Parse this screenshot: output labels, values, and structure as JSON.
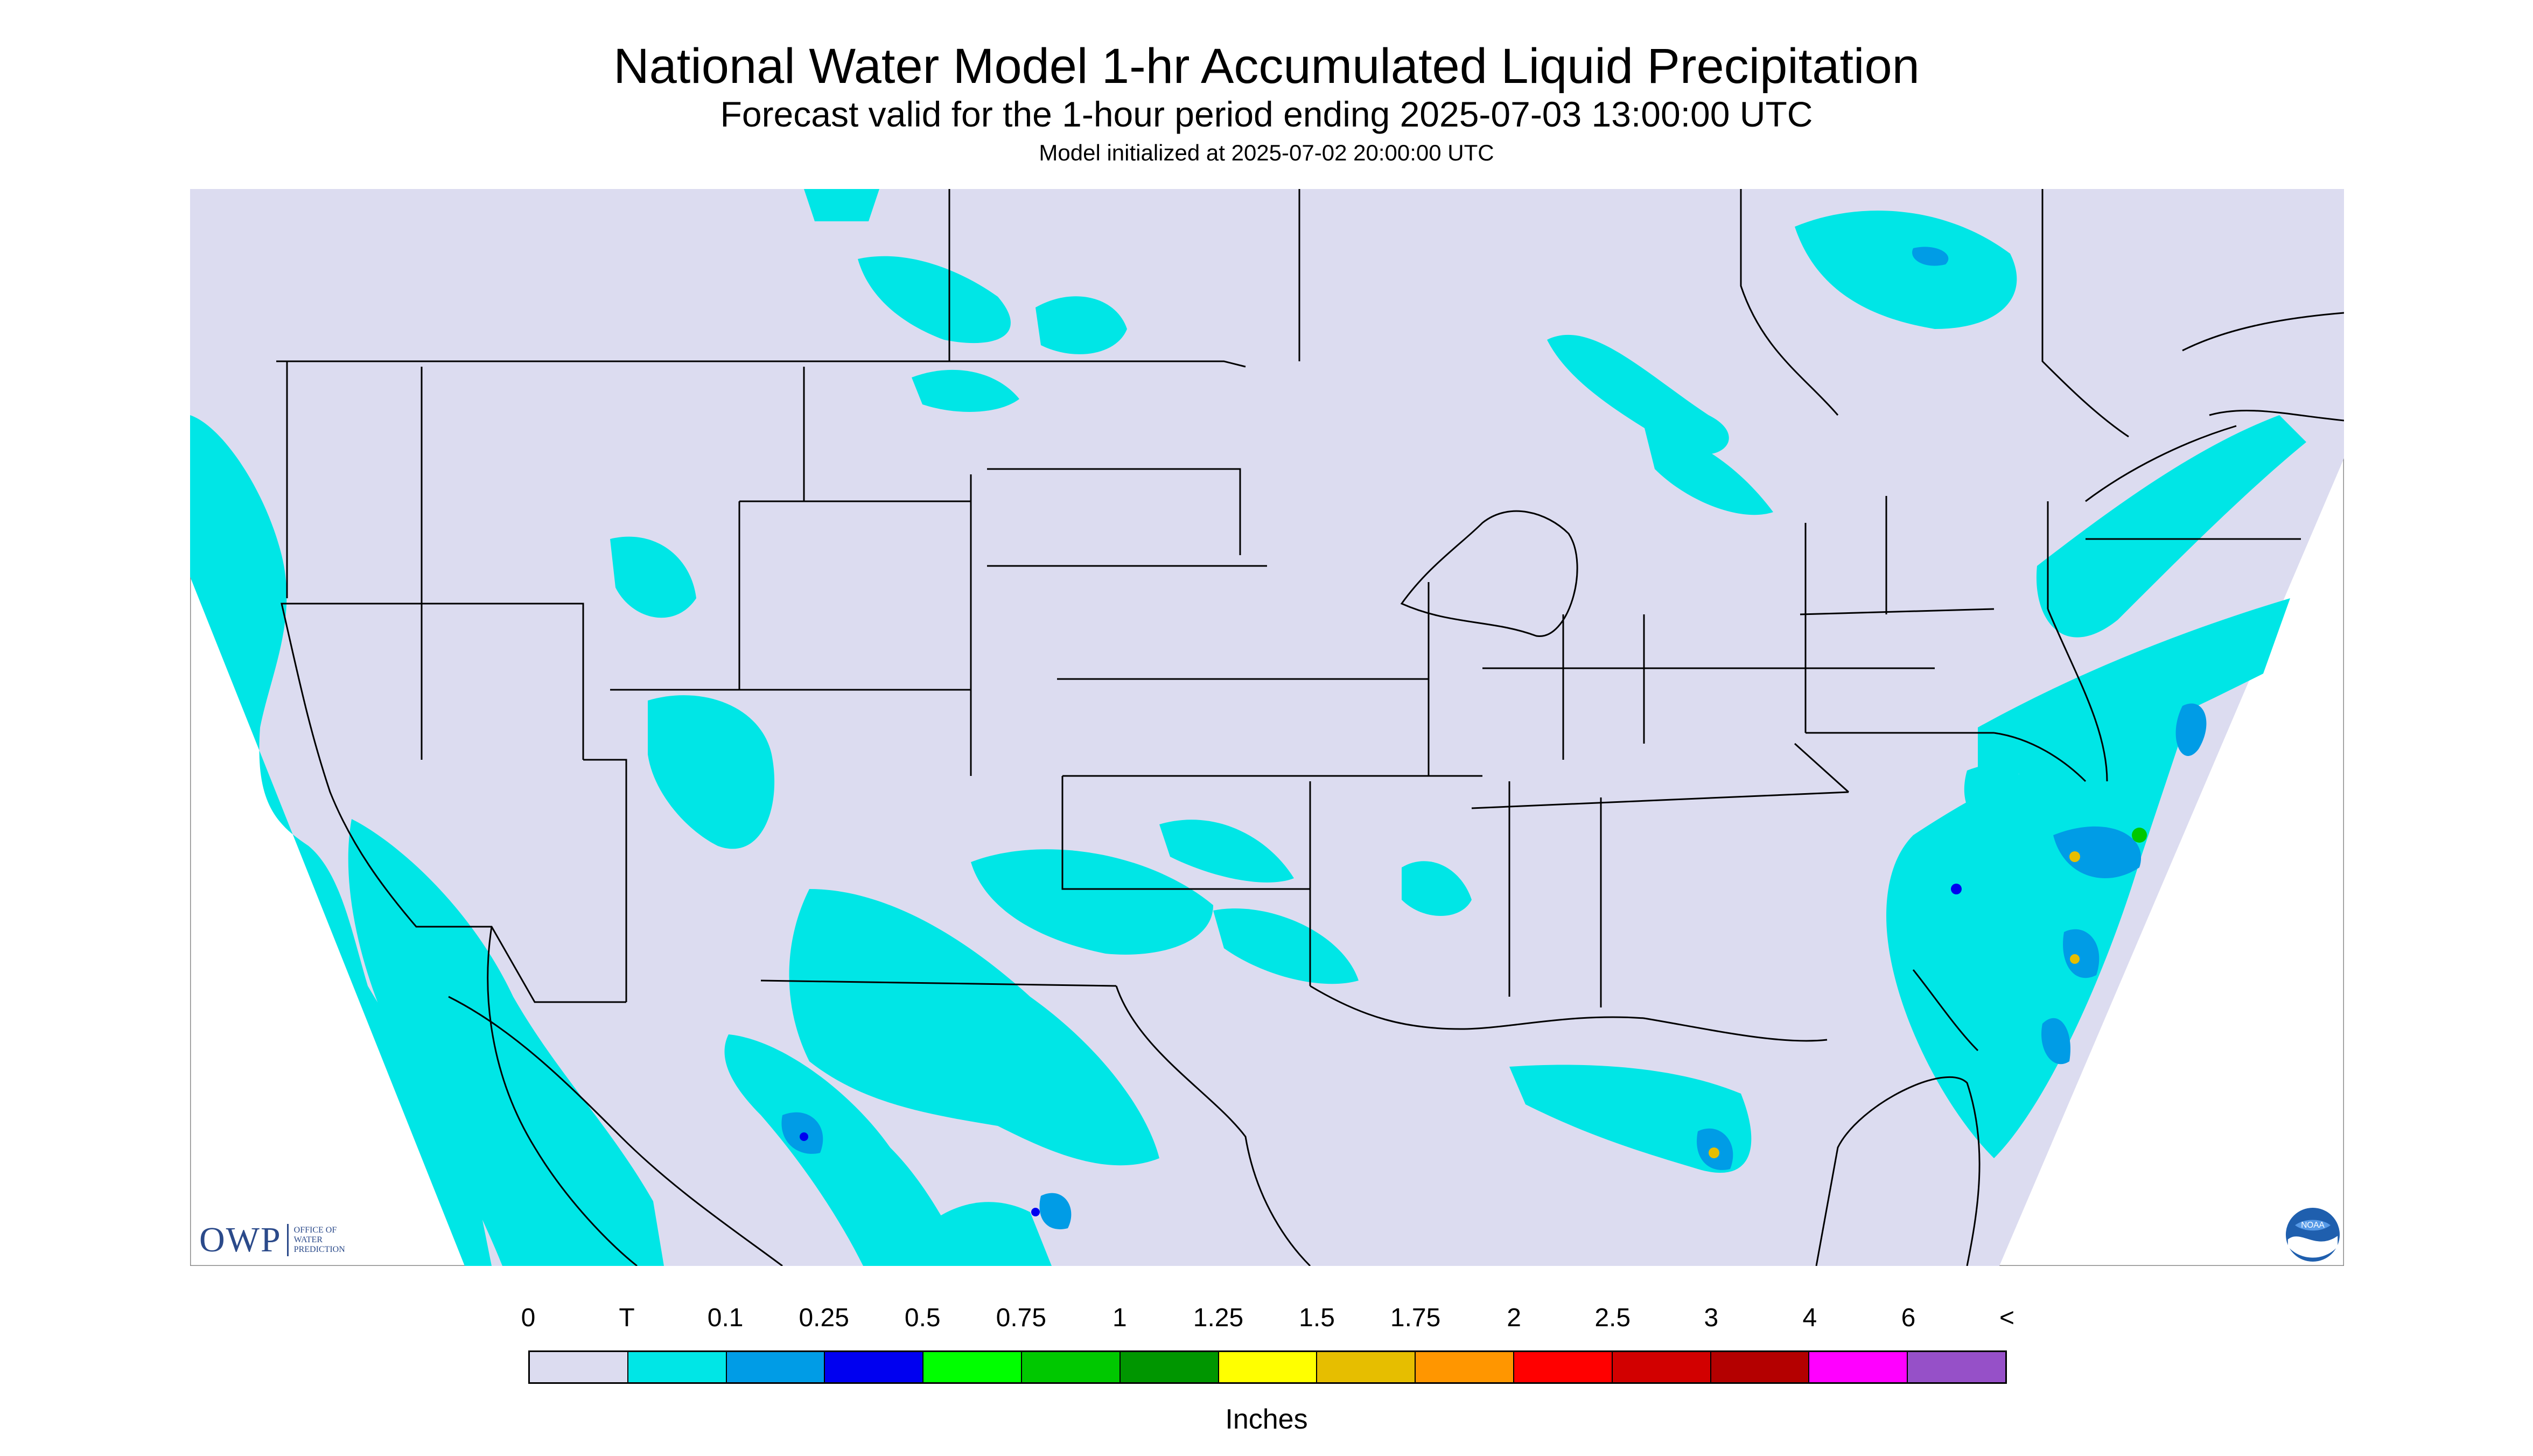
{
  "header": {
    "title": "National Water Model 1-hr Accumulated Liquid Precipitation",
    "subtitle": "Forecast valid for the 1-hour period ending 2025-07-03 13:00:00 UTC",
    "init": "Model initialized at 2025-07-02 20:00:00 UTC"
  },
  "colors": {
    "no_data": "#dcdcf0",
    "land_outline": "#000000",
    "trace": "#00e6e6",
    "light": "#009ce6",
    "heavy": "#0000f0"
  },
  "legend": {
    "labels": [
      "0",
      "T",
      "0.1",
      "0.25",
      "0.5",
      "0.75",
      "1",
      "1.25",
      "1.5",
      "1.75",
      "2",
      "2.5",
      "3",
      "4",
      "6",
      "<"
    ],
    "colors": [
      "#dcdcf0",
      "#00e6e6",
      "#009ce6",
      "#0000f0",
      "#00ff00",
      "#00c800",
      "#009600",
      "#ffff00",
      "#e6be00",
      "#ff9600",
      "#ff0000",
      "#d20000",
      "#b40000",
      "#ff00ff",
      "#9650c8"
    ],
    "units": "Inches"
  },
  "logos": {
    "owp_mark": "OWP",
    "owp_text": [
      "OFFICE OF",
      "WATER",
      "PREDICTION"
    ],
    "noaa_text": "NOAA"
  }
}
